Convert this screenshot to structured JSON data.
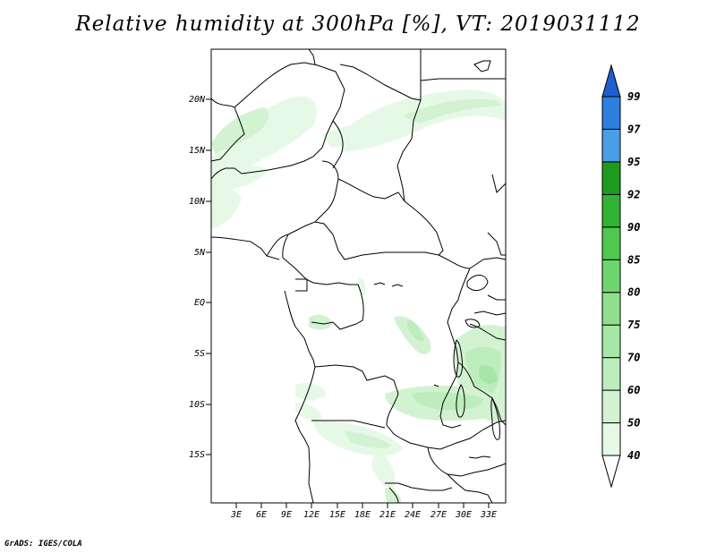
{
  "title": "Relative humidity at 300hPa [%], VT: 2019031112",
  "credit": "GrADS: IGES/COLA",
  "axes": {
    "lat_labels": [
      "20N",
      "15N",
      "10N",
      "5N",
      "EQ",
      "5S",
      "10S",
      "15S"
    ],
    "lon_labels": [
      "3E",
      "6E",
      "9E",
      "12E",
      "15E",
      "18E",
      "21E",
      "24E",
      "27E",
      "30E",
      "33E"
    ]
  },
  "colorbar": {
    "levels": [
      "40",
      "50",
      "60",
      "70",
      "75",
      "80",
      "85",
      "90",
      "92",
      "95",
      "97",
      "99"
    ],
    "colors": [
      "#ffffff",
      "#e6f9e6",
      "#d2f2d2",
      "#bdedbd",
      "#a6e6a6",
      "#8fdf8f",
      "#6fd66f",
      "#4fc94f",
      "#33b333",
      "#1e9b1e",
      "#4a9ee8",
      "#2d7fe0",
      "#1f5fcf"
    ]
  }
}
